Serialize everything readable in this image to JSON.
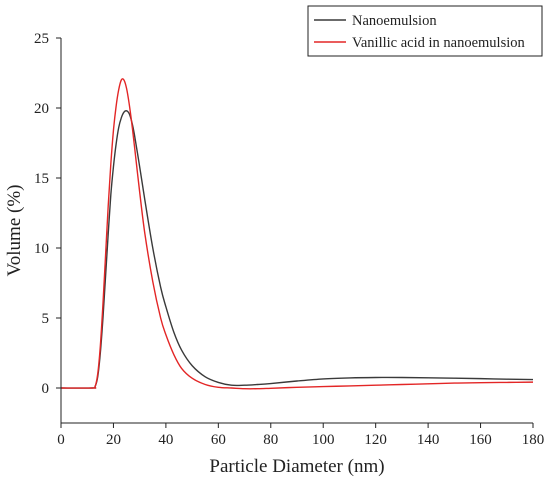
{
  "chart_data": {
    "type": "line",
    "xlabel": "Particle Diameter (nm)",
    "ylabel": "Volume (%)",
    "xlim": [
      0,
      180
    ],
    "ylim": [
      -2.5,
      25
    ],
    "xticks": [
      0,
      20,
      40,
      60,
      80,
      100,
      120,
      140,
      160,
      180
    ],
    "yticks": [
      0,
      5,
      10,
      15,
      20,
      25
    ],
    "grid": false,
    "legend_position": "top-right",
    "series": [
      {
        "name": "Nanoemulsion",
        "color": "#3a3a3a",
        "points": [
          [
            0,
            0
          ],
          [
            12,
            0
          ],
          [
            13,
            0.1
          ],
          [
            14,
            0.8
          ],
          [
            15,
            2.5
          ],
          [
            16,
            5.0
          ],
          [
            17,
            8.0
          ],
          [
            18,
            11.0
          ],
          [
            19,
            13.8
          ],
          [
            20,
            15.8
          ],
          [
            21,
            17.4
          ],
          [
            22,
            18.6
          ],
          [
            23,
            19.3
          ],
          [
            24,
            19.7
          ],
          [
            25,
            19.8
          ],
          [
            26,
            19.6
          ],
          [
            27,
            19.0
          ],
          [
            28,
            18.1
          ],
          [
            30,
            15.8
          ],
          [
            32,
            13.4
          ],
          [
            35,
            10.0
          ],
          [
            38,
            7.2
          ],
          [
            40,
            5.8
          ],
          [
            43,
            4.0
          ],
          [
            46,
            2.7
          ],
          [
            50,
            1.6
          ],
          [
            55,
            0.8
          ],
          [
            60,
            0.4
          ],
          [
            65,
            0.2
          ],
          [
            70,
            0.2
          ],
          [
            75,
            0.25
          ],
          [
            80,
            0.32
          ],
          [
            90,
            0.5
          ],
          [
            100,
            0.65
          ],
          [
            110,
            0.72
          ],
          [
            120,
            0.75
          ],
          [
            130,
            0.75
          ],
          [
            140,
            0.73
          ],
          [
            150,
            0.7
          ],
          [
            160,
            0.67
          ],
          [
            170,
            0.63
          ],
          [
            180,
            0.6
          ]
        ]
      },
      {
        "name": "Vanillic acid in nanoemulsion",
        "color": "#e32626",
        "points": [
          [
            0,
            0
          ],
          [
            12,
            0
          ],
          [
            13,
            0.1
          ],
          [
            14,
            1.0
          ],
          [
            15,
            3.0
          ],
          [
            16,
            6.0
          ],
          [
            17,
            9.5
          ],
          [
            18,
            13.0
          ],
          [
            19,
            16.0
          ],
          [
            20,
            18.4
          ],
          [
            21,
            20.1
          ],
          [
            22,
            21.3
          ],
          [
            23,
            22.0
          ],
          [
            24,
            22.0
          ],
          [
            25,
            21.4
          ],
          [
            26,
            20.3
          ],
          [
            27,
            18.9
          ],
          [
            28,
            17.3
          ],
          [
            30,
            14.0
          ],
          [
            32,
            11.0
          ],
          [
            35,
            7.6
          ],
          [
            38,
            5.0
          ],
          [
            40,
            3.8
          ],
          [
            43,
            2.4
          ],
          [
            46,
            1.4
          ],
          [
            50,
            0.7
          ],
          [
            55,
            0.25
          ],
          [
            60,
            0.05
          ],
          [
            65,
            0.0
          ],
          [
            70,
            -0.05
          ],
          [
            75,
            -0.05
          ],
          [
            80,
            -0.02
          ],
          [
            90,
            0.05
          ],
          [
            100,
            0.1
          ],
          [
            110,
            0.15
          ],
          [
            120,
            0.2
          ],
          [
            130,
            0.25
          ],
          [
            140,
            0.3
          ],
          [
            150,
            0.35
          ],
          [
            160,
            0.38
          ],
          [
            170,
            0.4
          ],
          [
            180,
            0.42
          ]
        ]
      }
    ]
  }
}
